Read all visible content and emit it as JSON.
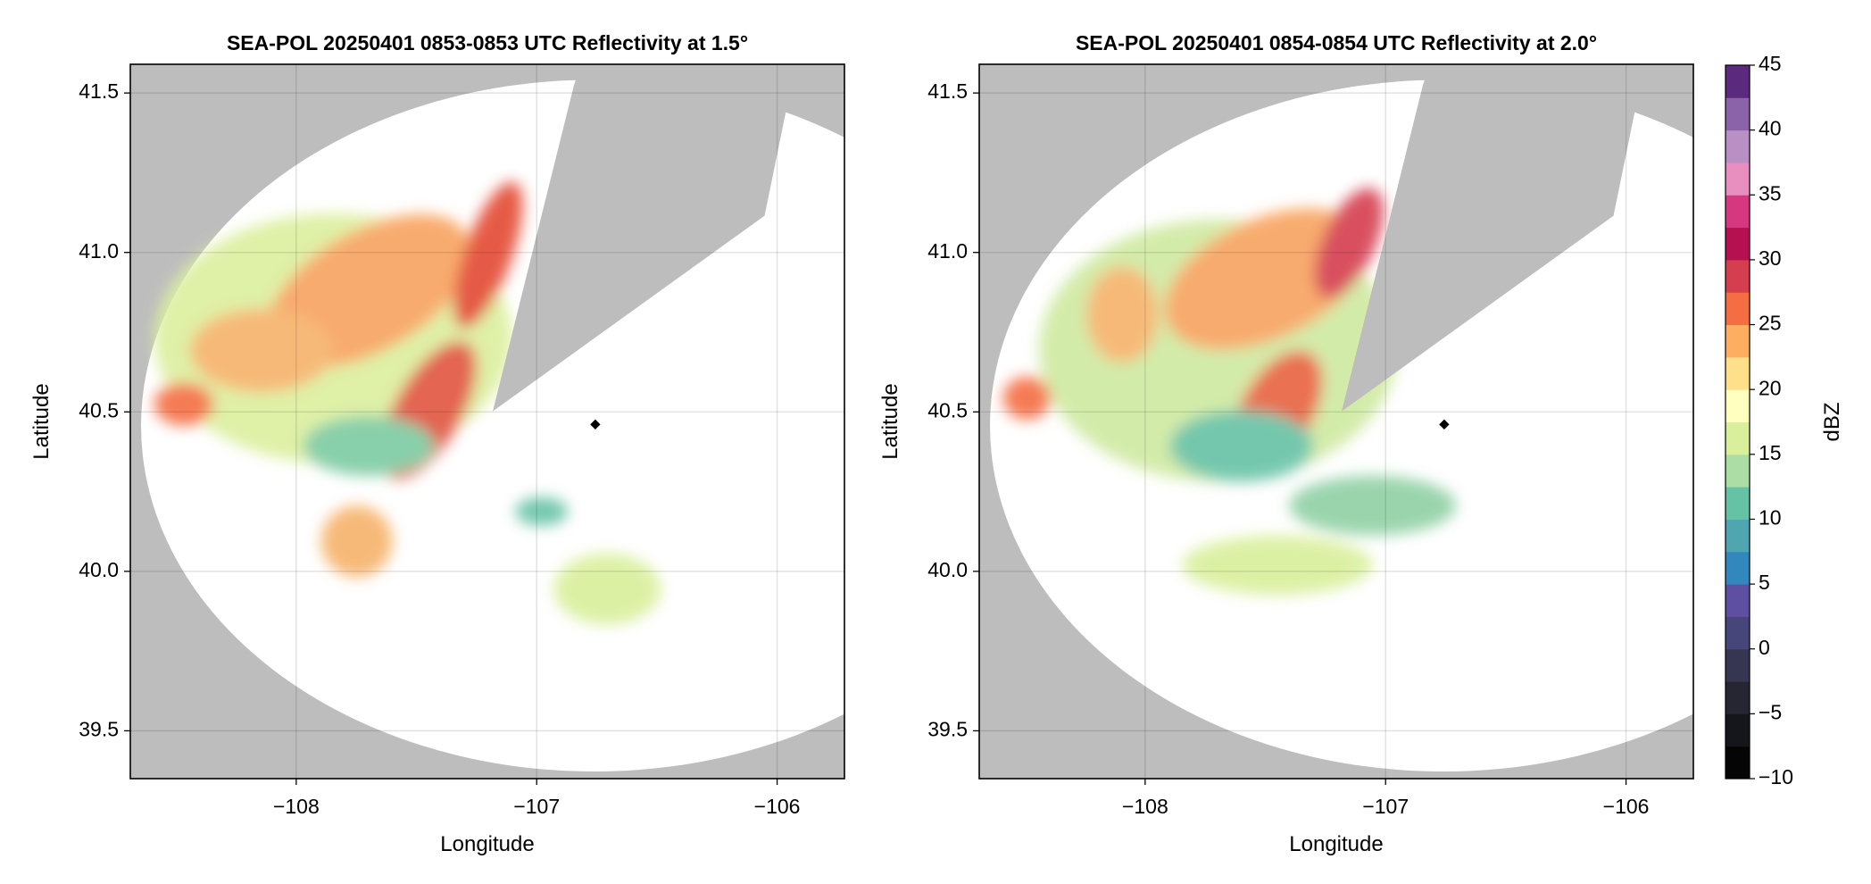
{
  "chart_data": [
    {
      "type": "radar-ppi",
      "title": "SEA-POL 20250401 0853-0853 UTC Reflectivity at 1.5°",
      "x_label": "Longitude",
      "y_label": "Latitude",
      "xlim": [
        -108.69,
        -105.72
      ],
      "ylim": [
        39.35,
        41.59
      ],
      "xticks": [
        {
          "value": -108,
          "label": "−108"
        },
        {
          "value": -107,
          "label": "−107"
        },
        {
          "value": -106,
          "label": "−106"
        }
      ],
      "yticks": [
        39.5,
        {
          "value": 40,
          "label": "40.0"
        },
        40.5,
        {
          "value": 41,
          "label": "41.0"
        },
        41.5
      ],
      "grid": true
    },
    {
      "type": "radar-ppi",
      "title": "SEA-POL 20250401 0854-0854 UTC Reflectivity at 2.0°",
      "x_label": "Longitude",
      "y_label": "Latitude",
      "xlim": [
        -108.69,
        -105.72
      ],
      "ylim": [
        39.35,
        41.59
      ],
      "xticks": [
        {
          "value": -108,
          "label": "−108"
        },
        {
          "value": -107,
          "label": "−107"
        },
        {
          "value": -106,
          "label": "−106"
        }
      ],
      "yticks": [
        39.5,
        {
          "value": 40,
          "label": "40.0"
        },
        40.5,
        {
          "value": 41,
          "label": "41.0"
        },
        41.5
      ],
      "grid": true
    }
  ],
  "colorbar": {
    "label": "dBZ",
    "lim": [
      -10,
      45
    ],
    "ticks": [
      {
        "value": -10,
        "label": "−10"
      },
      {
        "value": -5,
        "label": "−5"
      },
      0,
      5,
      10,
      15,
      20,
      25,
      30,
      35,
      40,
      45
    ],
    "colors": [
      "#050505",
      "#15151c",
      "#262633",
      "#363653",
      "#46467a",
      "#5e4fa2",
      "#3288bd",
      "#4fa6b0",
      "#66c2a5",
      "#abdda4",
      "#d9ef9b",
      "#ffffbf",
      "#fee08b",
      "#fdae61",
      "#f46d43",
      "#d53e4f",
      "#b5104f",
      "#d6387f",
      "#e88fbf",
      "#b98fc4",
      "#8a63a8",
      "#5b2a7e"
    ]
  }
}
